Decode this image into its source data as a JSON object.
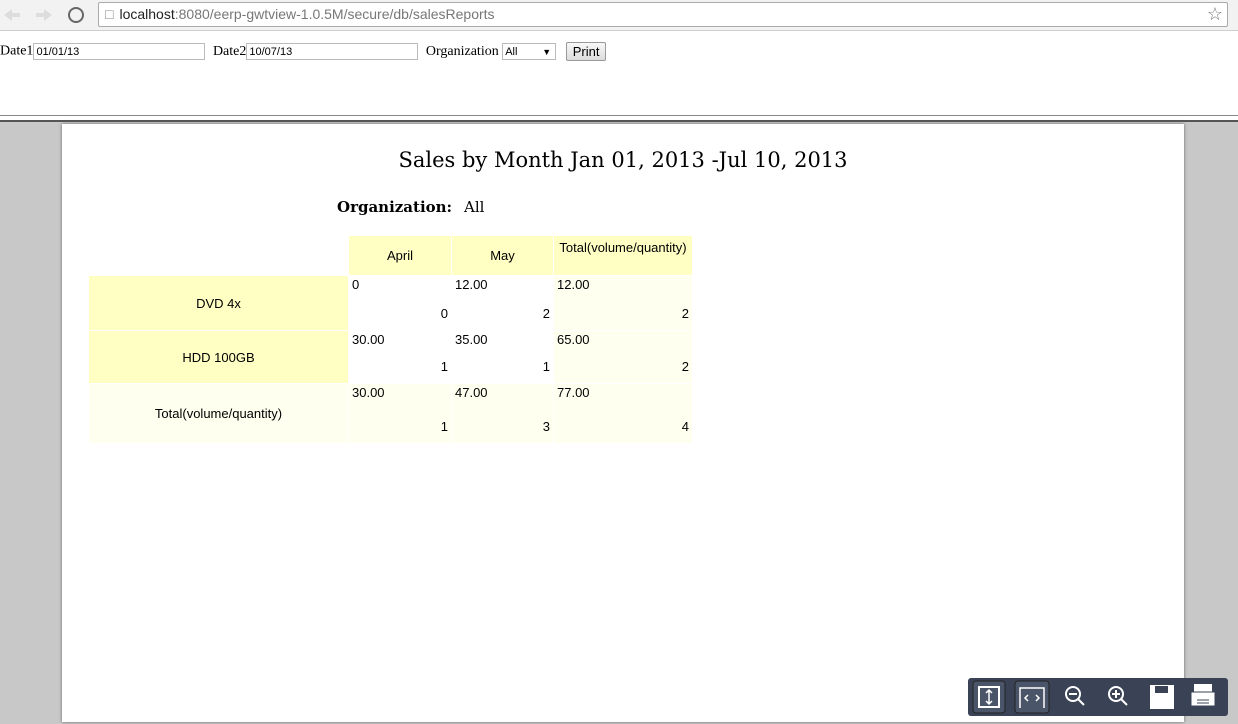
{
  "browser": {
    "url_host": "localhost",
    "url_path": ":8080/eerp-gwtview-1.0.5M/secure/db/salesReports"
  },
  "form": {
    "date1_label": "Date1",
    "date1_value": "01/01/13",
    "date2_label": "Date2",
    "date2_value": "10/07/13",
    "organization_label": "Organization",
    "organization_value": "All",
    "print_button": "Print"
  },
  "report": {
    "title": "Sales by Month Jan 01, 2013 -Jul 10, 2013",
    "organization_label": "Organization:",
    "organization_value": "All",
    "columns": [
      "April",
      "May",
      "Total(volume/quantity)"
    ],
    "rows": [
      {
        "label": "DVD 4x",
        "cells": [
          {
            "volume": "0",
            "quantity": "0"
          },
          {
            "volume": "12.00",
            "quantity": "2"
          },
          {
            "volume": "12.00",
            "quantity": "2"
          }
        ]
      },
      {
        "label": "HDD 100GB",
        "cells": [
          {
            "volume": "30.00",
            "quantity": "1"
          },
          {
            "volume": "35.00",
            "quantity": "1"
          },
          {
            "volume": "65.00",
            "quantity": "2"
          }
        ]
      },
      {
        "label": "Total(volume/quantity)",
        "cells": [
          {
            "volume": "30.00",
            "quantity": "1"
          },
          {
            "volume": "47.00",
            "quantity": "3"
          },
          {
            "volume": "77.00",
            "quantity": "4"
          }
        ]
      }
    ]
  }
}
